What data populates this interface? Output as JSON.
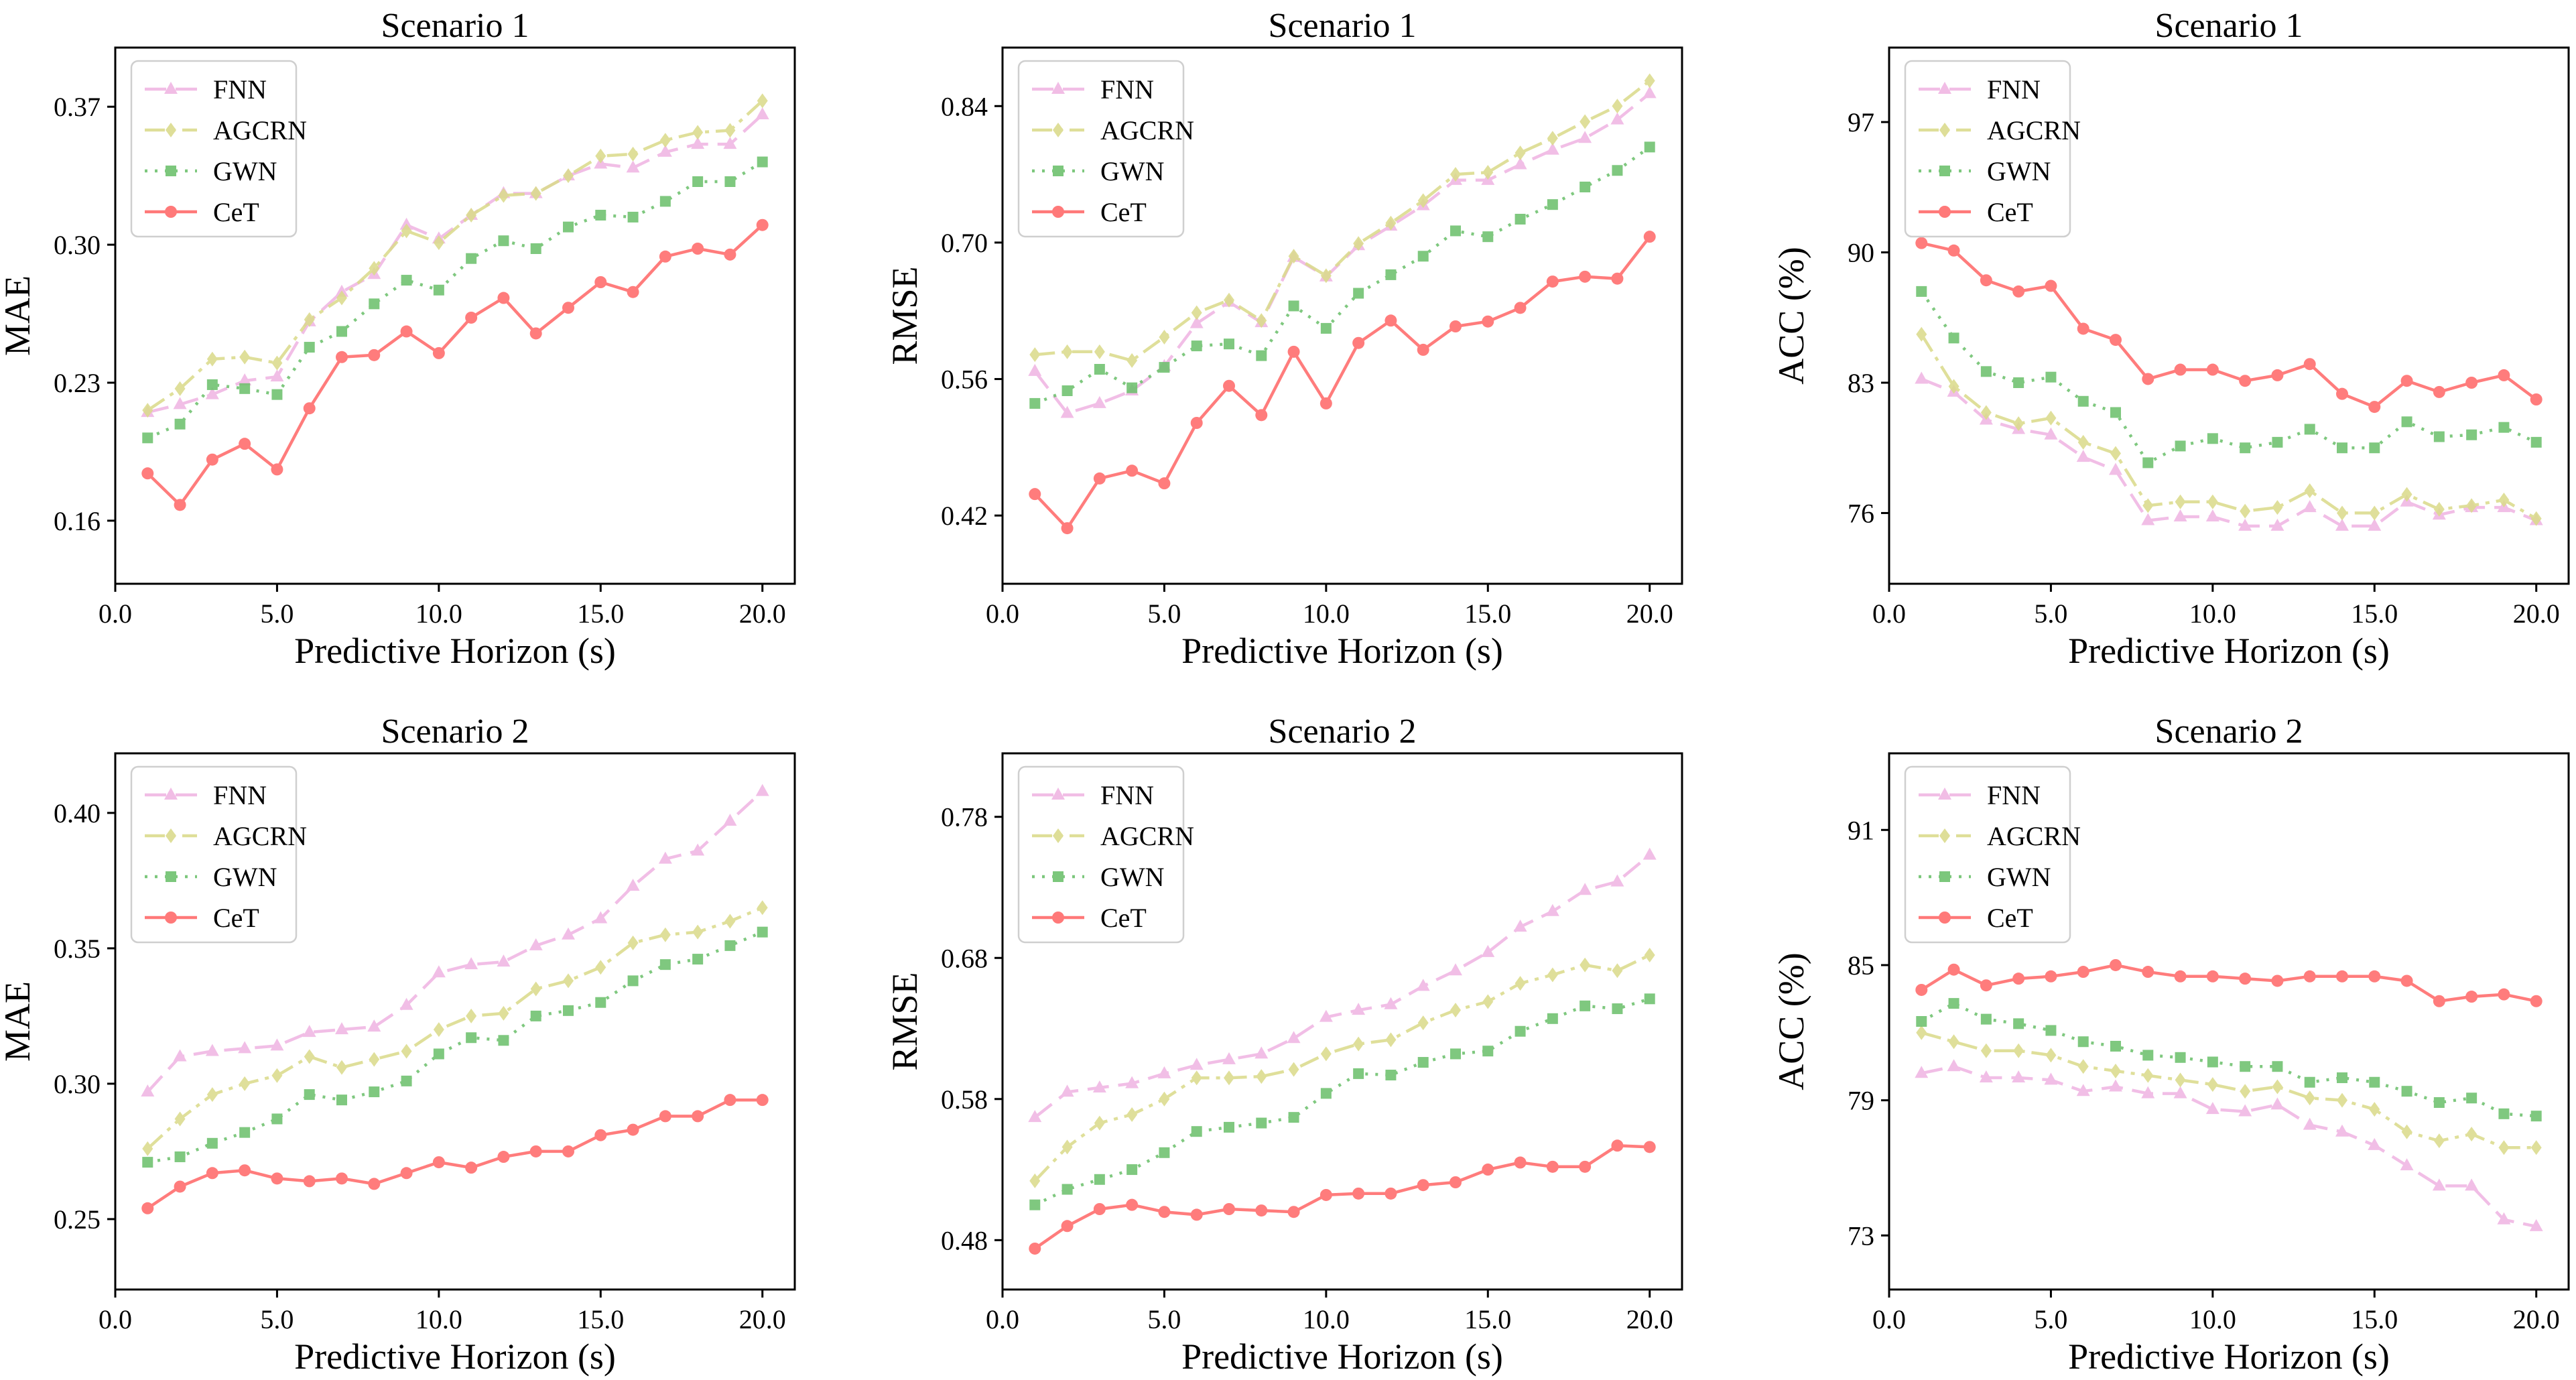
{
  "figure": {
    "shared_xlabel": "Predictive Horizon (s)"
  },
  "series_styles": {
    "FNN": {
      "color": "#f0b6e3",
      "marker": "triangle",
      "dash": "dashed"
    },
    "AGCRN": {
      "color": "#dbdb8d",
      "marker": "diamond",
      "dash": "dashdot"
    },
    "GWN": {
      "color": "#6ec16e",
      "marker": "square",
      "dash": "dotted"
    },
    "CeT": {
      "color": "#ff6b6b",
      "marker": "circle",
      "dash": "solid"
    }
  },
  "chart_data": [
    {
      "type": "line",
      "title": "Scenario 1",
      "xlabel": "Predictive Horizon (s)",
      "ylabel": "MAE",
      "xlim": [
        0,
        21
      ],
      "ylim": [
        0.128,
        0.4
      ],
      "xticks": [
        0,
        5,
        10,
        15,
        20
      ],
      "xtick_labels": [
        "0.0",
        "5.0",
        "10.0",
        "15.0",
        "20.0"
      ],
      "yticks": [
        0.16,
        0.23,
        0.3,
        0.37
      ],
      "ytick_labels": [
        "0.16",
        "0.23",
        "0.30",
        "0.37"
      ],
      "legend": "top-left",
      "x": [
        1,
        2,
        3,
        4,
        5,
        6,
        7,
        8,
        9,
        10,
        11,
        12,
        13,
        14,
        15,
        16,
        17,
        18,
        19,
        20
      ],
      "series": [
        {
          "name": "FNN",
          "values": [
            0.215,
            0.219,
            0.224,
            0.231,
            0.233,
            0.261,
            0.276,
            0.285,
            0.31,
            0.303,
            0.315,
            0.326,
            0.326,
            0.335,
            0.341,
            0.339,
            0.347,
            0.351,
            0.351,
            0.366
          ]
        },
        {
          "name": "AGCRN",
          "values": [
            0.216,
            0.227,
            0.242,
            0.243,
            0.24,
            0.262,
            0.273,
            0.288,
            0.307,
            0.301,
            0.315,
            0.325,
            0.326,
            0.335,
            0.345,
            0.346,
            0.353,
            0.357,
            0.358,
            0.373
          ]
        },
        {
          "name": "GWN",
          "values": [
            0.202,
            0.209,
            0.229,
            0.227,
            0.224,
            0.248,
            0.256,
            0.27,
            0.282,
            0.277,
            0.293,
            0.302,
            0.298,
            0.309,
            0.315,
            0.314,
            0.322,
            0.332,
            0.332,
            0.342
          ]
        },
        {
          "name": "CeT",
          "values": [
            0.184,
            0.168,
            0.191,
            0.199,
            0.186,
            0.217,
            0.243,
            0.244,
            0.256,
            0.245,
            0.263,
            0.273,
            0.255,
            0.268,
            0.281,
            0.276,
            0.294,
            0.298,
            0.295,
            0.31
          ]
        }
      ]
    },
    {
      "type": "line",
      "title": "Scenario 1",
      "xlabel": "Predictive Horizon (s)",
      "ylabel": "RMSE",
      "xlim": [
        0,
        21
      ],
      "ylim": [
        0.35,
        0.9
      ],
      "xticks": [
        0,
        5,
        10,
        15,
        20
      ],
      "xtick_labels": [
        "0.0",
        "5.0",
        "10.0",
        "15.0",
        "20.0"
      ],
      "yticks": [
        0.42,
        0.56,
        0.7,
        0.84
      ],
      "ytick_labels": [
        "0.42",
        "0.56",
        "0.70",
        "0.84"
      ],
      "legend": "top-left",
      "x": [
        1,
        2,
        3,
        4,
        5,
        6,
        7,
        8,
        9,
        10,
        11,
        12,
        13,
        14,
        15,
        16,
        17,
        18,
        19,
        20
      ],
      "series": [
        {
          "name": "FNN",
          "values": [
            0.568,
            0.525,
            0.535,
            0.548,
            0.573,
            0.617,
            0.639,
            0.618,
            0.685,
            0.665,
            0.697,
            0.717,
            0.738,
            0.764,
            0.764,
            0.78,
            0.795,
            0.807,
            0.826,
            0.853
          ]
        },
        {
          "name": "AGCRN",
          "values": [
            0.585,
            0.588,
            0.588,
            0.579,
            0.603,
            0.628,
            0.641,
            0.62,
            0.686,
            0.666,
            0.699,
            0.72,
            0.743,
            0.77,
            0.772,
            0.792,
            0.807,
            0.824,
            0.84,
            0.866
          ]
        },
        {
          "name": "GWN",
          "values": [
            0.535,
            0.548,
            0.57,
            0.551,
            0.572,
            0.594,
            0.596,
            0.584,
            0.635,
            0.612,
            0.648,
            0.667,
            0.686,
            0.712,
            0.706,
            0.724,
            0.739,
            0.757,
            0.774,
            0.798
          ]
        },
        {
          "name": "CeT",
          "values": [
            0.442,
            0.407,
            0.458,
            0.466,
            0.453,
            0.515,
            0.553,
            0.523,
            0.588,
            0.535,
            0.597,
            0.62,
            0.59,
            0.614,
            0.619,
            0.633,
            0.66,
            0.665,
            0.663,
            0.706
          ]
        }
      ]
    },
    {
      "type": "line",
      "title": "Scenario 1",
      "xlabel": "Predictive Horizon (s)",
      "ylabel": "ACC (%)",
      "xlim": [
        0,
        21
      ],
      "ylim": [
        72.2,
        101
      ],
      "xticks": [
        0,
        5,
        10,
        15,
        20
      ],
      "xtick_labels": [
        "0.0",
        "5.0",
        "10.0",
        "15.0",
        "20.0"
      ],
      "yticks": [
        76,
        83,
        90,
        97
      ],
      "ytick_labels": [
        "76",
        "83",
        "90",
        "97"
      ],
      "legend": "top-left",
      "x": [
        1,
        2,
        3,
        4,
        5,
        6,
        7,
        8,
        9,
        10,
        11,
        12,
        13,
        14,
        15,
        16,
        17,
        18,
        19,
        20
      ],
      "series": [
        {
          "name": "FNN",
          "values": [
            83.2,
            82.5,
            81.0,
            80.5,
            80.2,
            79.0,
            78.3,
            75.6,
            75.8,
            75.8,
            75.3,
            75.3,
            76.3,
            75.3,
            75.3,
            76.6,
            75.9,
            76.3,
            76.3,
            75.6
          ]
        },
        {
          "name": "AGCRN",
          "values": [
            85.6,
            82.8,
            81.4,
            80.8,
            81.1,
            79.8,
            79.2,
            76.4,
            76.6,
            76.6,
            76.1,
            76.3,
            77.2,
            76.0,
            76.0,
            77.0,
            76.2,
            76.4,
            76.7,
            75.7
          ]
        },
        {
          "name": "GWN",
          "values": [
            87.9,
            85.4,
            83.6,
            83.0,
            83.3,
            82.0,
            81.4,
            78.7,
            79.6,
            80.0,
            79.5,
            79.8,
            80.5,
            79.5,
            79.5,
            80.9,
            80.1,
            80.2,
            80.6,
            79.8
          ]
        },
        {
          "name": "CeT",
          "values": [
            90.5,
            90.1,
            88.5,
            87.9,
            88.2,
            85.9,
            85.3,
            83.2,
            83.7,
            83.7,
            83.1,
            83.4,
            84.0,
            82.4,
            81.7,
            83.1,
            82.5,
            83.0,
            83.4,
            82.1
          ]
        }
      ]
    },
    {
      "type": "line",
      "title": "Scenario 2",
      "xlabel": "Predictive Horizon (s)",
      "ylabel": "MAE",
      "xlim": [
        0,
        21
      ],
      "ylim": [
        0.224,
        0.422
      ],
      "xticks": [
        0,
        5,
        10,
        15,
        20
      ],
      "xtick_labels": [
        "0.0",
        "5.0",
        "10.0",
        "15.0",
        "20.0"
      ],
      "yticks": [
        0.25,
        0.3,
        0.35,
        0.4
      ],
      "ytick_labels": [
        "0.25",
        "0.30",
        "0.35",
        "0.40"
      ],
      "legend": "top-left",
      "x": [
        1,
        2,
        3,
        4,
        5,
        6,
        7,
        8,
        9,
        10,
        11,
        12,
        13,
        14,
        15,
        16,
        17,
        18,
        19,
        20
      ],
      "series": [
        {
          "name": "FNN",
          "values": [
            0.297,
            0.31,
            0.312,
            0.313,
            0.314,
            0.319,
            0.32,
            0.321,
            0.329,
            0.341,
            0.344,
            0.345,
            0.351,
            0.355,
            0.361,
            0.373,
            0.383,
            0.386,
            0.397,
            0.408
          ]
        },
        {
          "name": "AGCRN",
          "values": [
            0.276,
            0.287,
            0.296,
            0.3,
            0.303,
            0.31,
            0.306,
            0.309,
            0.312,
            0.32,
            0.325,
            0.326,
            0.335,
            0.338,
            0.343,
            0.352,
            0.355,
            0.356,
            0.36,
            0.365
          ]
        },
        {
          "name": "GWN",
          "values": [
            0.271,
            0.273,
            0.278,
            0.282,
            0.287,
            0.296,
            0.294,
            0.297,
            0.301,
            0.311,
            0.317,
            0.316,
            0.325,
            0.327,
            0.33,
            0.338,
            0.344,
            0.346,
            0.351,
            0.356
          ]
        },
        {
          "name": "CeT",
          "values": [
            0.254,
            0.262,
            0.267,
            0.268,
            0.265,
            0.264,
            0.265,
            0.263,
            0.267,
            0.271,
            0.269,
            0.273,
            0.275,
            0.275,
            0.281,
            0.283,
            0.288,
            0.288,
            0.294,
            0.294
          ]
        }
      ]
    },
    {
      "type": "line",
      "title": "Scenario 2",
      "xlabel": "Predictive Horizon (s)",
      "ylabel": "RMSE",
      "xlim": [
        0,
        21
      ],
      "ylim": [
        0.445,
        0.825
      ],
      "xticks": [
        0,
        5,
        10,
        15,
        20
      ],
      "xtick_labels": [
        "0.0",
        "5.0",
        "10.0",
        "15.0",
        "20.0"
      ],
      "yticks": [
        0.48,
        0.58,
        0.68,
        0.78
      ],
      "ytick_labels": [
        "0.48",
        "0.58",
        "0.68",
        "0.78"
      ],
      "legend": "top-left",
      "x": [
        1,
        2,
        3,
        4,
        5,
        6,
        7,
        8,
        9,
        10,
        11,
        12,
        13,
        14,
        15,
        16,
        17,
        18,
        19,
        20
      ],
      "series": [
        {
          "name": "FNN",
          "values": [
            0.567,
            0.585,
            0.588,
            0.591,
            0.598,
            0.604,
            0.608,
            0.612,
            0.623,
            0.638,
            0.643,
            0.647,
            0.66,
            0.671,
            0.684,
            0.702,
            0.713,
            0.728,
            0.734,
            0.753
          ]
        },
        {
          "name": "AGCRN",
          "values": [
            0.522,
            0.546,
            0.563,
            0.569,
            0.58,
            0.595,
            0.595,
            0.596,
            0.601,
            0.612,
            0.619,
            0.622,
            0.634,
            0.643,
            0.649,
            0.662,
            0.668,
            0.675,
            0.671,
            0.682
          ]
        },
        {
          "name": "GWN",
          "values": [
            0.505,
            0.516,
            0.523,
            0.53,
            0.542,
            0.557,
            0.56,
            0.563,
            0.567,
            0.584,
            0.598,
            0.597,
            0.606,
            0.612,
            0.614,
            0.628,
            0.637,
            0.646,
            0.644,
            0.651
          ]
        },
        {
          "name": "CeT",
          "values": [
            0.474,
            0.49,
            0.502,
            0.505,
            0.5,
            0.498,
            0.502,
            0.501,
            0.5,
            0.512,
            0.513,
            0.513,
            0.519,
            0.521,
            0.53,
            0.535,
            0.532,
            0.532,
            0.547,
            0.546
          ]
        }
      ]
    },
    {
      "type": "line",
      "title": "Scenario 2",
      "xlabel": "Predictive Horizon (s)",
      "ylabel": "ACC (%)",
      "xlim": [
        0,
        21
      ],
      "ylim": [
        70.6,
        94.4
      ],
      "xticks": [
        0,
        5,
        10,
        15,
        20
      ],
      "xtick_labels": [
        "0.0",
        "5.0",
        "10.0",
        "15.0",
        "20.0"
      ],
      "yticks": [
        73,
        79,
        85,
        91
      ],
      "ytick_labels": [
        "73",
        "79",
        "85",
        "91"
      ],
      "legend": "top-left",
      "x": [
        1,
        2,
        3,
        4,
        5,
        6,
        7,
        8,
        9,
        10,
        11,
        12,
        13,
        14,
        15,
        16,
        17,
        18,
        19,
        20
      ],
      "series": [
        {
          "name": "FNN",
          "values": [
            80.2,
            80.5,
            80.0,
            80.0,
            79.9,
            79.4,
            79.6,
            79.3,
            79.3,
            78.6,
            78.5,
            78.8,
            77.9,
            77.6,
            77.0,
            76.1,
            75.2,
            75.2,
            73.7,
            73.4
          ]
        },
        {
          "name": "AGCRN",
          "values": [
            82.0,
            81.6,
            81.2,
            81.2,
            81.0,
            80.5,
            80.3,
            80.1,
            79.9,
            79.7,
            79.4,
            79.6,
            79.1,
            79.0,
            78.6,
            77.6,
            77.2,
            77.5,
            76.9,
            76.9
          ]
        },
        {
          "name": "GWN",
          "values": [
            82.5,
            83.3,
            82.6,
            82.4,
            82.1,
            81.6,
            81.4,
            81.0,
            80.9,
            80.7,
            80.5,
            80.5,
            79.8,
            80.0,
            79.8,
            79.4,
            78.9,
            79.1,
            78.4,
            78.3
          ]
        },
        {
          "name": "CeT",
          "values": [
            83.9,
            84.8,
            84.1,
            84.4,
            84.5,
            84.7,
            85.0,
            84.7,
            84.5,
            84.5,
            84.4,
            84.3,
            84.5,
            84.5,
            84.5,
            84.3,
            83.4,
            83.6,
            83.7,
            83.4
          ]
        }
      ]
    }
  ]
}
